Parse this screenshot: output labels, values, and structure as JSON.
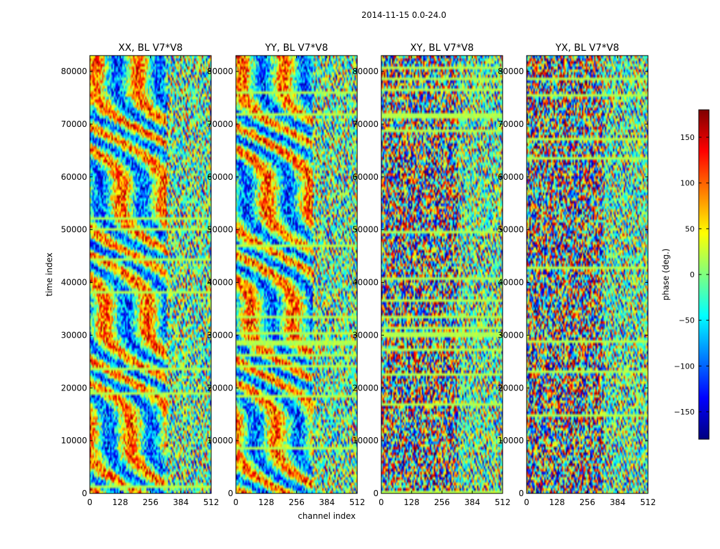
{
  "figure": {
    "suptitle": "2014-11-15 0.0-24.0"
  },
  "colorbar": {
    "label": "phase (deg.)",
    "colormap": "jet",
    "range": [
      -180,
      180
    ],
    "ticks": [
      -150,
      -100,
      -50,
      0,
      50,
      100,
      150
    ],
    "tick_labels": [
      "−150",
      "−100",
      "−50",
      "0",
      "50",
      "100",
      "150"
    ],
    "colors": [
      "#00007f",
      "#0000ff",
      "#007fff",
      "#00ffff",
      "#7fff7f",
      "#ffff00",
      "#ff7f00",
      "#ff0000",
      "#7f0000"
    ]
  },
  "chart_data": [
    {
      "type": "heatmap",
      "title": "XX, BL V7*V8",
      "xlabel": "",
      "ylabel": "time index",
      "xlim": [
        0,
        512
      ],
      "ylim": [
        0,
        83000
      ],
      "xticks": [
        0,
        128,
        256,
        384,
        512
      ],
      "yticks": [
        0,
        10000,
        20000,
        30000,
        40000,
        50000,
        60000,
        70000,
        80000
      ],
      "value": "phase (deg.)",
      "vrange": [
        -180,
        180
      ]
    },
    {
      "type": "heatmap",
      "title": "YY, BL V7*V8",
      "xlabel": "channel index",
      "ylabel": "",
      "xlim": [
        0,
        512
      ],
      "ylim": [
        0,
        83000
      ],
      "xticks": [
        0,
        128,
        256,
        384,
        512
      ],
      "yticks": [
        0,
        10000,
        20000,
        30000,
        40000,
        50000,
        60000,
        70000,
        80000
      ],
      "value": "phase (deg.)",
      "vrange": [
        -180,
        180
      ]
    },
    {
      "type": "heatmap",
      "title": "XY, BL V7*V8",
      "xlabel": "",
      "ylabel": "",
      "xlim": [
        0,
        512
      ],
      "ylim": [
        0,
        83000
      ],
      "xticks": [
        0,
        128,
        256,
        384,
        512
      ],
      "yticks": [
        0,
        10000,
        20000,
        30000,
        40000,
        50000,
        60000,
        70000,
        80000
      ],
      "value": "phase (deg.)",
      "vrange": [
        -180,
        180
      ]
    },
    {
      "type": "heatmap",
      "title": "YX, BL V7*V8",
      "xlabel": "",
      "ylabel": "",
      "xlim": [
        0,
        512
      ],
      "ylim": [
        0,
        83000
      ],
      "xticks": [
        0,
        128,
        256,
        384,
        512
      ],
      "yticks": [
        0,
        10000,
        20000,
        30000,
        40000,
        50000,
        60000,
        70000,
        80000
      ],
      "value": "phase (deg.)",
      "vrange": [
        -180,
        180
      ]
    }
  ]
}
